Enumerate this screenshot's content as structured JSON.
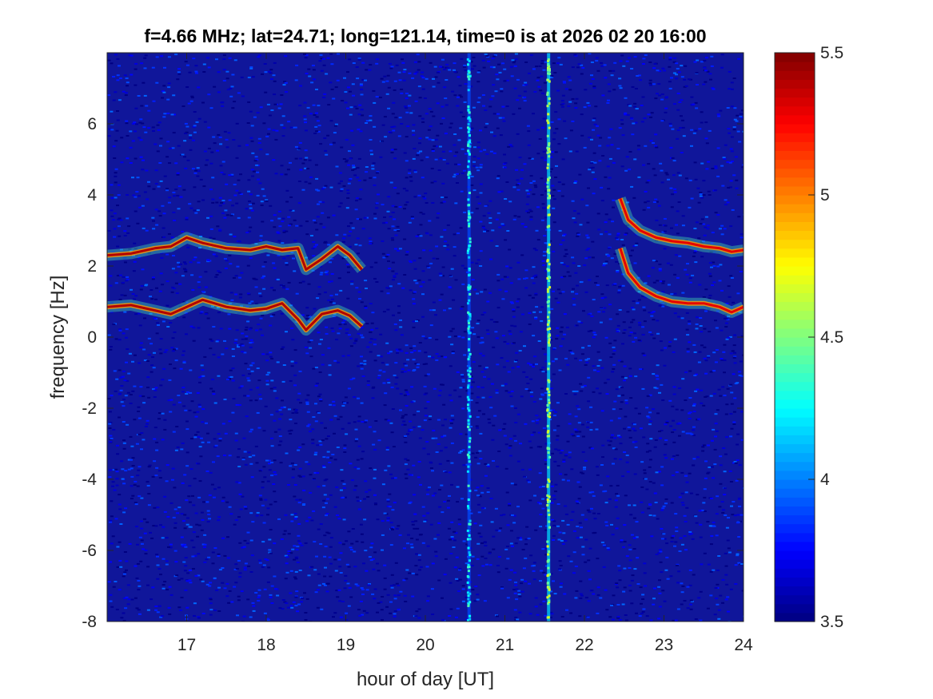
{
  "chart_data": {
    "type": "heatmap",
    "title": "f=4.66 MHz;  lat=24.71; long=121.14, time=0 is at 2026 02 20 16:00",
    "xlabel": "hour of day [UT]",
    "ylabel": "frequency [Hz]",
    "xlim": [
      16,
      24
    ],
    "ylim": [
      -8,
      8
    ],
    "xticks": [
      17,
      18,
      19,
      20,
      21,
      22,
      23,
      24
    ],
    "yticks": [
      -8,
      -6,
      -4,
      -2,
      0,
      2,
      4,
      6
    ],
    "colorbar": {
      "colormap": "jet",
      "clim": [
        3.5,
        5.5
      ],
      "ticks": [
        3.5,
        4,
        4.5,
        5,
        5.5
      ]
    },
    "background_level": 3.6,
    "vertical_bands": [
      {
        "x": 20.55,
        "level": 3.9
      },
      {
        "x": 21.55,
        "level": 4.2
      }
    ],
    "traces": [
      {
        "name": "",
        "level": 5.4,
        "x": [
          16.0,
          16.3,
          16.6,
          16.8,
          17.0,
          17.2,
          17.5,
          17.8,
          18.0,
          18.2,
          18.4,
          18.5,
          18.7,
          18.9,
          19.05,
          19.2
        ],
        "y": [
          2.3,
          2.35,
          2.5,
          2.55,
          2.8,
          2.65,
          2.5,
          2.45,
          2.55,
          2.45,
          2.5,
          1.9,
          2.2,
          2.55,
          2.3,
          1.9
        ]
      },
      {
        "name": "",
        "level": 5.4,
        "x": [
          16.0,
          16.3,
          16.6,
          16.8,
          17.0,
          17.2,
          17.5,
          17.8,
          18.0,
          18.2,
          18.4,
          18.5,
          18.7,
          18.9,
          19.05,
          19.2
        ],
        "y": [
          0.85,
          0.9,
          0.75,
          0.65,
          0.85,
          1.05,
          0.85,
          0.75,
          0.8,
          0.95,
          0.5,
          0.2,
          0.65,
          0.75,
          0.6,
          0.3
        ]
      },
      {
        "name": "",
        "level": 5.3,
        "x": [
          22.45,
          22.55,
          22.7,
          22.9,
          23.1,
          23.3,
          23.5,
          23.7,
          23.85,
          24.0
        ],
        "y": [
          3.9,
          3.3,
          3.0,
          2.8,
          2.7,
          2.65,
          2.55,
          2.5,
          2.4,
          2.45
        ]
      },
      {
        "name": "",
        "level": 5.3,
        "x": [
          22.45,
          22.55,
          22.7,
          22.9,
          23.1,
          23.3,
          23.5,
          23.7,
          23.85,
          24.0
        ],
        "y": [
          2.5,
          1.8,
          1.4,
          1.15,
          1.0,
          0.95,
          0.95,
          0.85,
          0.7,
          0.85
        ]
      }
    ]
  }
}
